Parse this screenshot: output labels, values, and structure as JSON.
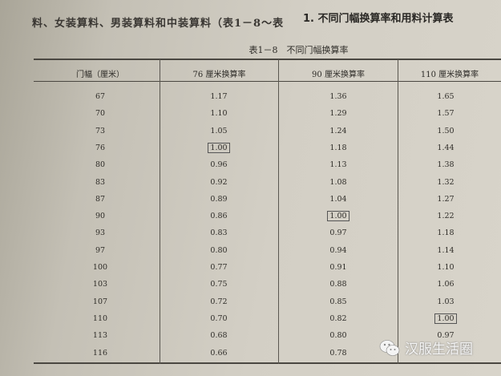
{
  "body_text": "料、女装算料、男装算料和中装算料（表1－8～表",
  "section_heading": "1. 不同门幅换算率和用料计算表",
  "table": {
    "caption": "表1－8　不同门幅换算率",
    "headers": [
      "门幅（厘米）",
      "76 厘米换算率",
      "90 厘米换算率",
      "110 厘米换算率"
    ],
    "rows": [
      [
        "67",
        "1.17",
        "1.36",
        "1.65"
      ],
      [
        "70",
        "1.10",
        "1.29",
        "1.57"
      ],
      [
        "73",
        "1.05",
        "1.24",
        "1.50"
      ],
      [
        "76",
        "1.00",
        "1.18",
        "1.44"
      ],
      [
        "80",
        "0.96",
        "1.13",
        "1.38"
      ],
      [
        "83",
        "0.92",
        "1.08",
        "1.32"
      ],
      [
        "87",
        "0.89",
        "1.04",
        "1.27"
      ],
      [
        "90",
        "0.86",
        "1.00",
        "1.22"
      ],
      [
        "93",
        "0.83",
        "0.97",
        "1.18"
      ],
      [
        "97",
        "0.80",
        "0.94",
        "1.14"
      ],
      [
        "100",
        "0.77",
        "0.91",
        "1.10"
      ],
      [
        "103",
        "0.75",
        "0.88",
        "1.06"
      ],
      [
        "107",
        "0.72",
        "0.85",
        "1.03"
      ],
      [
        "110",
        "0.70",
        "0.82",
        "1.00"
      ],
      [
        "113",
        "0.68",
        "0.80",
        "0.97"
      ],
      [
        "116",
        "0.66",
        "0.78",
        ""
      ]
    ],
    "boxed_cells": [
      [
        3,
        1
      ],
      [
        7,
        2
      ],
      [
        13,
        3
      ]
    ]
  },
  "watermark": {
    "text": "汉服生活圈",
    "icon": "wechat-icon"
  }
}
